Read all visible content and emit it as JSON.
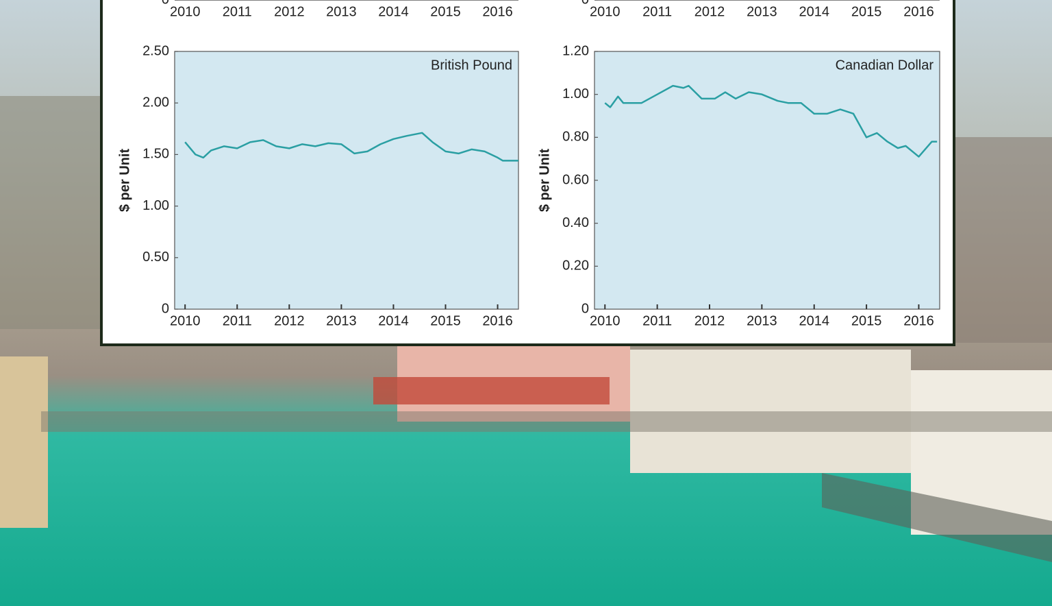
{
  "chart_data": [
    {
      "type": "line",
      "xlim": [
        2009.8,
        2016.4
      ],
      "xticks": [
        2010,
        2011,
        2012,
        2013,
        2014,
        2015,
        2016
      ],
      "yticks": [
        0
      ]
    },
    {
      "type": "line",
      "xlim": [
        2009.8,
        2016.4
      ],
      "xticks": [
        2010,
        2011,
        2012,
        2013,
        2014,
        2015,
        2016
      ],
      "yticks": [
        0
      ]
    },
    {
      "type": "line",
      "y_label": "$ per Unit",
      "xlim": [
        2009.8,
        2016.4
      ],
      "xticks": [
        2010,
        2011,
        2012,
        2013,
        2014,
        2015,
        2016
      ],
      "ylim": [
        0,
        2.5
      ],
      "yticks": [
        0,
        {
          "value": 0.5,
          "label": "0.50"
        },
        {
          "value": 1,
          "label": "1.00"
        },
        {
          "value": 1.5,
          "label": "1.50"
        },
        {
          "value": 2,
          "label": "2.00"
        },
        {
          "value": 2.5,
          "label": "2.50"
        }
      ],
      "x": [
        2010.0,
        2010.2,
        2010.35,
        2010.5,
        2010.75,
        2011.0,
        2011.25,
        2011.5,
        2011.75,
        2012.0,
        2012.25,
        2012.5,
        2012.75,
        2013.0,
        2013.25,
        2013.5,
        2013.75,
        2014.0,
        2014.25,
        2014.55,
        2014.75,
        2015.0,
        2015.25,
        2015.5,
        2015.75,
        2016.0,
        2016.1,
        2016.4
      ],
      "series": [
        {
          "name": "British Pound",
          "color": "#2a9fa3",
          "values": [
            1.62,
            1.5,
            1.47,
            1.54,
            1.58,
            1.56,
            1.62,
            1.64,
            1.58,
            1.56,
            1.6,
            1.58,
            1.61,
            1.6,
            1.51,
            1.53,
            1.6,
            1.65,
            1.68,
            1.71,
            1.62,
            1.53,
            1.51,
            1.55,
            1.53,
            1.47,
            1.44,
            1.44
          ]
        }
      ]
    },
    {
      "type": "line",
      "y_label": "$ per Unit",
      "xlim": [
        2009.8,
        2016.4
      ],
      "xticks": [
        2010,
        2011,
        2012,
        2013,
        2014,
        2015,
        2016
      ],
      "ylim": [
        0,
        1.2
      ],
      "yticks": [
        0,
        {
          "value": 0.2,
          "label": "0.20"
        },
        {
          "value": 0.4,
          "label": "0.40"
        },
        {
          "value": 0.6,
          "label": "0.60"
        },
        {
          "value": 0.8,
          "label": "0.80"
        },
        {
          "value": 1,
          "label": "1.00"
        },
        {
          "value": 1.2,
          "label": "1.20"
        }
      ],
      "x": [
        2010.0,
        2010.1,
        2010.25,
        2010.35,
        2010.7,
        2011.0,
        2011.3,
        2011.5,
        2011.6,
        2011.85,
        2012.1,
        2012.3,
        2012.5,
        2012.75,
        2013.0,
        2013.3,
        2013.5,
        2013.75,
        2014.0,
        2014.25,
        2014.5,
        2014.75,
        2015.0,
        2015.2,
        2015.4,
        2015.6,
        2015.75,
        2016.0,
        2016.25,
        2016.35
      ],
      "series": [
        {
          "name": "Canadian Dollar",
          "color": "#2a9fa3",
          "values": [
            0.96,
            0.94,
            0.99,
            0.96,
            0.96,
            1.0,
            1.04,
            1.03,
            1.04,
            0.98,
            0.98,
            1.01,
            0.98,
            1.01,
            1.0,
            0.97,
            0.96,
            0.96,
            0.91,
            0.91,
            0.93,
            0.91,
            0.8,
            0.82,
            0.78,
            0.75,
            0.76,
            0.71,
            0.78,
            0.78
          ]
        }
      ]
    }
  ]
}
